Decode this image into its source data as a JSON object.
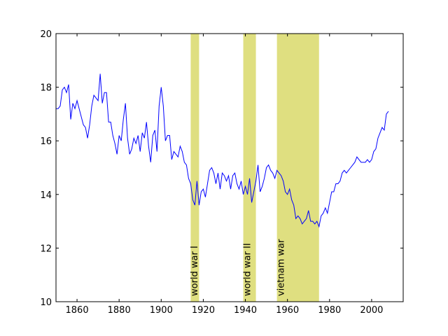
{
  "chart_data": {
    "type": "line",
    "x": [
      1850,
      1851,
      1852,
      1853,
      1854,
      1855,
      1856,
      1857,
      1858,
      1859,
      1860,
      1861,
      1862,
      1863,
      1864,
      1865,
      1866,
      1867,
      1868,
      1869,
      1870,
      1871,
      1872,
      1873,
      1874,
      1875,
      1876,
      1877,
      1878,
      1879,
      1880,
      1881,
      1882,
      1883,
      1884,
      1885,
      1886,
      1887,
      1888,
      1889,
      1890,
      1891,
      1892,
      1893,
      1894,
      1895,
      1896,
      1897,
      1898,
      1899,
      1900,
      1901,
      1902,
      1903,
      1904,
      1905,
      1906,
      1907,
      1908,
      1909,
      1910,
      1911,
      1912,
      1913,
      1914,
      1915,
      1916,
      1917,
      1918,
      1919,
      1920,
      1921,
      1922,
      1923,
      1924,
      1925,
      1926,
      1927,
      1928,
      1929,
      1930,
      1931,
      1932,
      1933,
      1934,
      1935,
      1936,
      1937,
      1938,
      1939,
      1940,
      1941,
      1942,
      1943,
      1944,
      1945,
      1946,
      1947,
      1948,
      1949,
      1950,
      1951,
      1952,
      1953,
      1954,
      1955,
      1956,
      1957,
      1958,
      1959,
      1960,
      1961,
      1962,
      1963,
      1964,
      1965,
      1966,
      1967,
      1968,
      1969,
      1970,
      1971,
      1972,
      1973,
      1974,
      1975,
      1976,
      1977,
      1978,
      1979,
      1980,
      1981,
      1982,
      1983,
      1984,
      1985,
      1986,
      1987,
      1988,
      1989,
      1990,
      1991,
      1992,
      1993,
      1994,
      1995,
      1996,
      1997,
      1998,
      1999,
      2000,
      2001,
      2002,
      2003,
      2004,
      2005,
      2006,
      2007,
      2008
    ],
    "values": [
      17.2,
      17.2,
      17.3,
      17.9,
      18.0,
      17.8,
      18.1,
      16.8,
      17.4,
      17.2,
      17.5,
      17.2,
      16.9,
      16.6,
      16.5,
      16.1,
      16.6,
      17.3,
      17.7,
      17.6,
      17.5,
      18.5,
      17.4,
      17.8,
      17.8,
      16.7,
      16.7,
      16.2,
      15.9,
      15.5,
      16.2,
      16.0,
      16.8,
      17.4,
      16.1,
      15.5,
      15.7,
      16.1,
      15.9,
      16.2,
      15.6,
      16.3,
      16.1,
      16.7,
      15.8,
      15.2,
      16.2,
      16.4,
      15.6,
      17.3,
      18.0,
      17.3,
      16.0,
      16.2,
      16.2,
      15.3,
      15.6,
      15.5,
      15.4,
      15.8,
      15.6,
      15.2,
      15.1,
      14.6,
      14.4,
      13.8,
      13.6,
      14.5,
      13.6,
      14.1,
      14.2,
      13.9,
      14.4,
      14.9,
      15.0,
      14.8,
      14.4,
      14.8,
      14.2,
      14.8,
      14.7,
      14.5,
      14.7,
      14.2,
      14.7,
      14.8,
      14.4,
      14.2,
      14.5,
      14.0,
      14.3,
      14.0,
      14.6,
      13.7,
      14.1,
      14.5,
      15.1,
      14.1,
      14.3,
      14.6,
      15.0,
      15.1,
      14.9,
      14.8,
      14.6,
      14.9,
      14.8,
      14.7,
      14.5,
      14.1,
      14.0,
      14.2,
      13.8,
      13.6,
      13.1,
      13.2,
      13.1,
      12.9,
      13.0,
      13.1,
      13.4,
      13.0,
      13.0,
      12.9,
      13.0,
      12.8,
      13.2,
      13.3,
      13.5,
      13.3,
      13.7,
      14.1,
      14.1,
      14.4,
      14.4,
      14.5,
      14.8,
      14.9,
      14.8,
      14.9,
      15.0,
      15.1,
      15.2,
      15.4,
      15.3,
      15.2,
      15.2,
      15.2,
      15.3,
      15.2,
      15.3,
      15.6,
      15.7,
      16.1,
      16.3,
      16.5,
      16.4,
      17.0,
      17.1
    ],
    "color": "#0000ff",
    "spans": [
      {
        "start": 1914,
        "end": 1918,
        "label": "world war I"
      },
      {
        "start": 1939,
        "end": 1945,
        "label": "world war II"
      },
      {
        "start": 1955,
        "end": 1975,
        "label": "vietnam war"
      }
    ],
    "span_color": "#dfdf80",
    "xlim": [
      1850,
      2015
    ],
    "xticks": [
      1860,
      1880,
      1900,
      1920,
      1940,
      1960,
      1980,
      2000
    ],
    "ylim": [
      10,
      20
    ],
    "yticks": [
      10,
      12,
      14,
      16,
      18,
      20
    ]
  }
}
